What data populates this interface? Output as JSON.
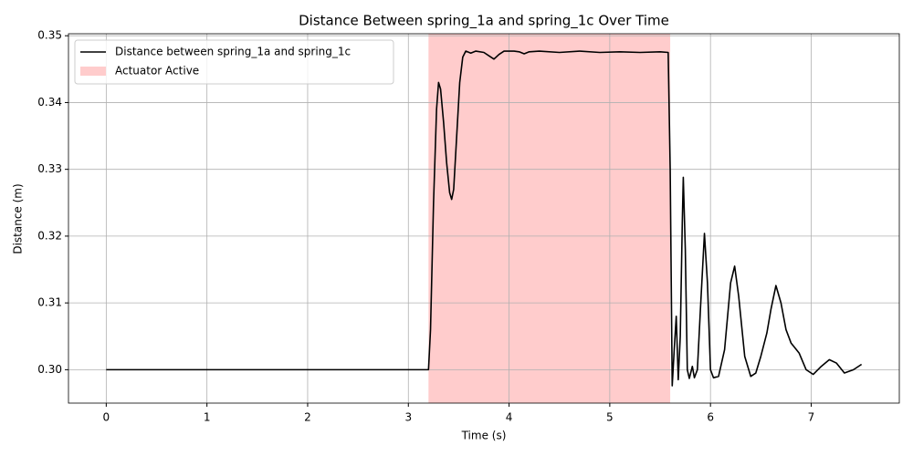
{
  "chart_data": {
    "type": "line",
    "title": "Distance Between spring_1a and spring_1c Over Time",
    "x_label": "Time (s)",
    "y_label": "Distance (m)",
    "x": [
      0,
      3.2,
      3.22,
      3.25,
      3.28,
      3.3,
      3.32,
      3.35,
      3.38,
      3.41,
      3.43,
      3.45,
      3.48,
      3.51,
      3.54,
      3.57,
      3.62,
      3.67,
      3.75,
      3.8,
      3.85,
      3.9,
      3.95,
      4.05,
      4.1,
      4.15,
      4.2,
      4.3,
      4.5,
      4.7,
      4.9,
      5.1,
      5.3,
      5.5,
      5.58,
      5.6,
      5.62,
      5.64,
      5.66,
      5.68,
      5.7,
      5.72,
      5.73,
      5.75,
      5.77,
      5.79,
      5.82,
      5.84,
      5.87,
      5.9,
      5.94,
      5.97,
      6.0,
      6.03,
      6.08,
      6.14,
      6.2,
      6.24,
      6.28,
      6.34,
      6.4,
      6.45,
      6.5,
      6.56,
      6.6,
      6.65,
      6.7,
      6.75,
      6.8,
      6.88,
      6.95,
      7.02,
      7.1,
      7.18,
      7.25,
      7.33,
      7.42,
      7.5
    ],
    "series": [
      {
        "name": "Distance between spring_1a and spring_1c",
        "color": "#000000",
        "values": [
          0.3,
          0.3,
          0.306,
          0.325,
          0.339,
          0.343,
          0.342,
          0.337,
          0.331,
          0.3265,
          0.3255,
          0.327,
          0.335,
          0.343,
          0.3468,
          0.3477,
          0.3474,
          0.3477,
          0.3475,
          0.347,
          0.3465,
          0.3472,
          0.3477,
          0.3477,
          0.3476,
          0.3473,
          0.3476,
          0.3477,
          0.3475,
          0.3477,
          0.3475,
          0.3476,
          0.3475,
          0.3476,
          0.3475,
          0.33,
          0.2976,
          0.303,
          0.308,
          0.2985,
          0.305,
          0.322,
          0.3288,
          0.318,
          0.3,
          0.2987,
          0.3005,
          0.2988,
          0.3,
          0.309,
          0.3204,
          0.313,
          0.3,
          0.2988,
          0.299,
          0.303,
          0.313,
          0.3155,
          0.311,
          0.302,
          0.299,
          0.2995,
          0.302,
          0.3055,
          0.309,
          0.3126,
          0.31,
          0.306,
          0.304,
          0.3025,
          0.3,
          0.2993,
          0.3005,
          0.3015,
          0.301,
          0.2995,
          0.3,
          0.3008
        ]
      }
    ],
    "spans": [
      {
        "name": "Actuator Active",
        "x": [
          3.2,
          5.6
        ],
        "color": "#ffcccc"
      }
    ],
    "xlim": [
      -0.375,
      7.875
    ],
    "ylim": [
      0.295,
      0.3503
    ],
    "xticks": [
      0,
      1,
      2,
      3,
      4,
      5,
      6,
      7
    ],
    "yticks": [
      {
        "value": 0.3,
        "label": "0.30"
      },
      0.31,
      0.32,
      0.33,
      0.34,
      0.35
    ],
    "grid": true,
    "legend": "upper left"
  }
}
